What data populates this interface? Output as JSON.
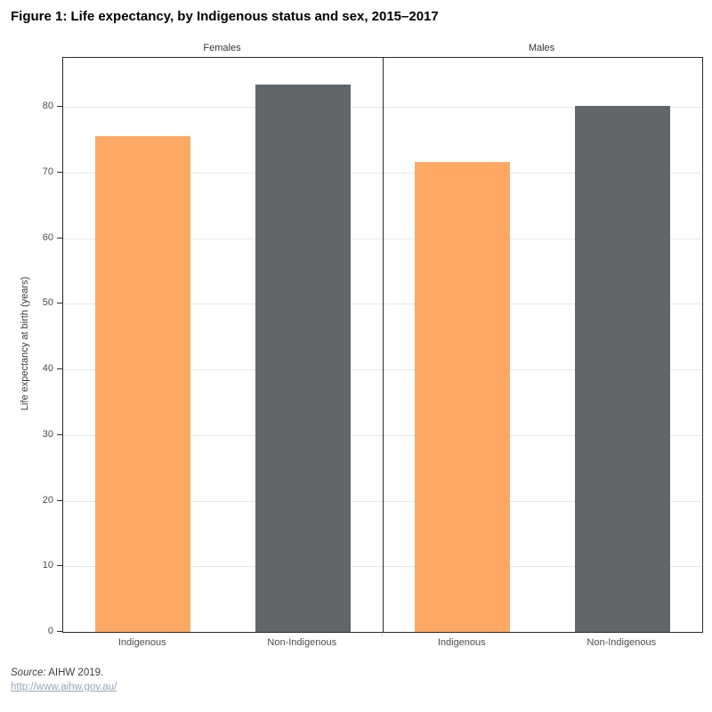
{
  "header": {
    "title": "Figure 1: Life expectancy, by Indigenous status and sex, 2015–2017"
  },
  "chart_data": {
    "type": "bar",
    "title": "Figure 1: Life expectancy, by Indigenous status and sex, 2015–2017",
    "ylabel": "Life expectancy at birth (years)",
    "ylim": [
      0,
      87.5
    ],
    "yticks": [
      0,
      10,
      20,
      30,
      40,
      50,
      60,
      70,
      80
    ],
    "grid": "horizontal",
    "legend": "none",
    "categories": [
      "Indigenous",
      "Non-Indigenous"
    ],
    "bar_colors": [
      "#FDA965",
      "#61666A"
    ],
    "panels": [
      {
        "label": "Females",
        "categories": [
          "Indigenous",
          "Non-Indigenous"
        ],
        "values": [
          75.6,
          83.4
        ]
      },
      {
        "label": "Males",
        "categories": [
          "Indigenous",
          "Non-Indigenous"
        ],
        "values": [
          71.6,
          80.2
        ]
      }
    ]
  },
  "footer": {
    "source_prefix": "Source:",
    "source_rest": " AIHW 2019.",
    "link": "http://www.aihw.gov.au/"
  },
  "colors": {
    "indigenous_bar": "#FDA965",
    "non_indigenous_bar": "#61666A",
    "axis_line": "#2b2b2b",
    "gridline": "#e8e8e8",
    "tick_label": "#4c4c4c",
    "link": "#97a7bc"
  }
}
